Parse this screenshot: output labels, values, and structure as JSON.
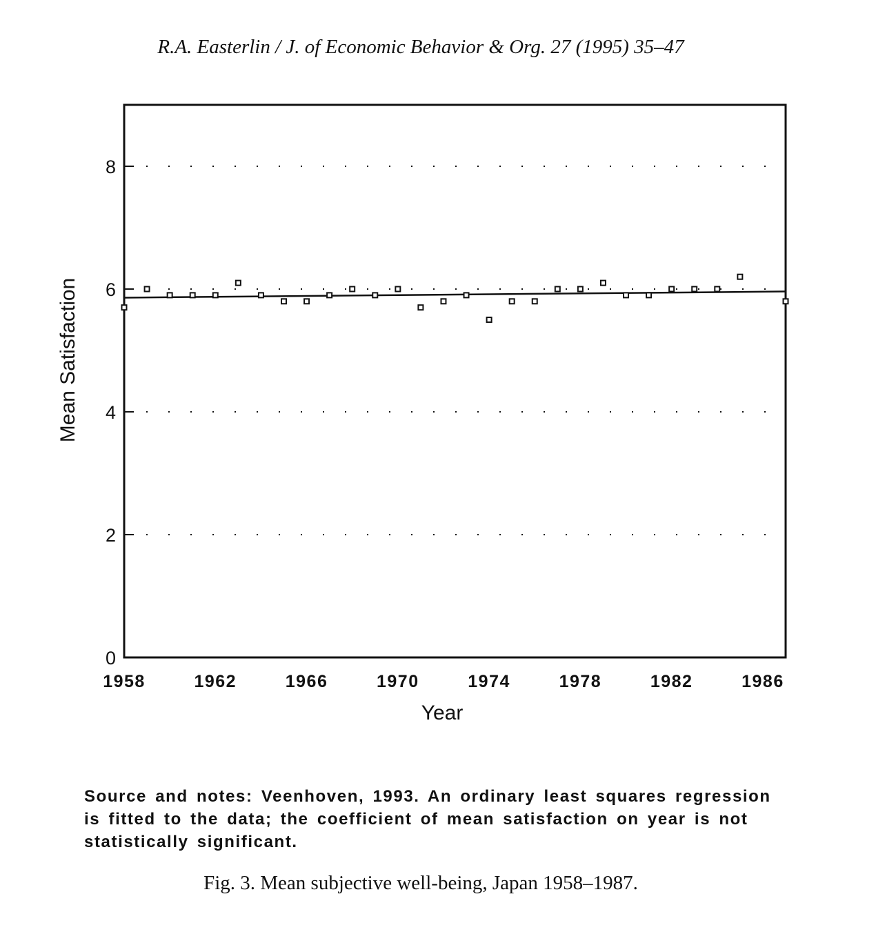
{
  "header": {
    "running_head": "R.A. Easterlin / J. of Economic Behavior & Org. 27 (1995) 35–47"
  },
  "chart_data": {
    "type": "scatter",
    "title": "",
    "xlabel": "Year",
    "ylabel": "Mean Satisfaction",
    "xlim": [
      1958,
      1987
    ],
    "ylim": [
      0,
      9
    ],
    "x_ticks": [
      1958,
      1962,
      1966,
      1970,
      1974,
      1978,
      1982,
      1986
    ],
    "y_ticks": [
      0,
      2,
      4,
      6,
      8
    ],
    "grid": "dotted horizontal at y ticks",
    "series": [
      {
        "marker": "square",
        "x": [
          1958,
          1959,
          1960,
          1961,
          1962,
          1963,
          1964,
          1965,
          1966,
          1967,
          1968,
          1969,
          1970,
          1971,
          1972,
          1973,
          1974,
          1975,
          1976,
          1977,
          1978,
          1979,
          1980,
          1981,
          1982,
          1983,
          1984,
          1985,
          1987
        ],
        "y": [
          5.7,
          6.0,
          5.9,
          5.9,
          5.9,
          6.1,
          5.9,
          5.8,
          5.8,
          5.9,
          6.0,
          5.9,
          6.0,
          5.7,
          5.8,
          5.9,
          5.5,
          5.8,
          5.8,
          6.0,
          6.0,
          6.1,
          5.9,
          5.9,
          6.0,
          6.0,
          6.0,
          6.2,
          5.8
        ]
      }
    ],
    "regression_line": {
      "type": "OLS",
      "x": [
        1958,
        1987
      ],
      "y": [
        5.86,
        5.96
      ]
    }
  },
  "notes": {
    "text": "Source and notes: Veenhoven, 1993. An ordinary least squares regression is fitted to the data; the coefficient of mean satisfaction on year is not statistically significant."
  },
  "caption": {
    "text": "Fig. 3. Mean subjective well-being, Japan 1958–1987."
  },
  "colors": {
    "ink": "#111111",
    "background": "#ffffff"
  }
}
